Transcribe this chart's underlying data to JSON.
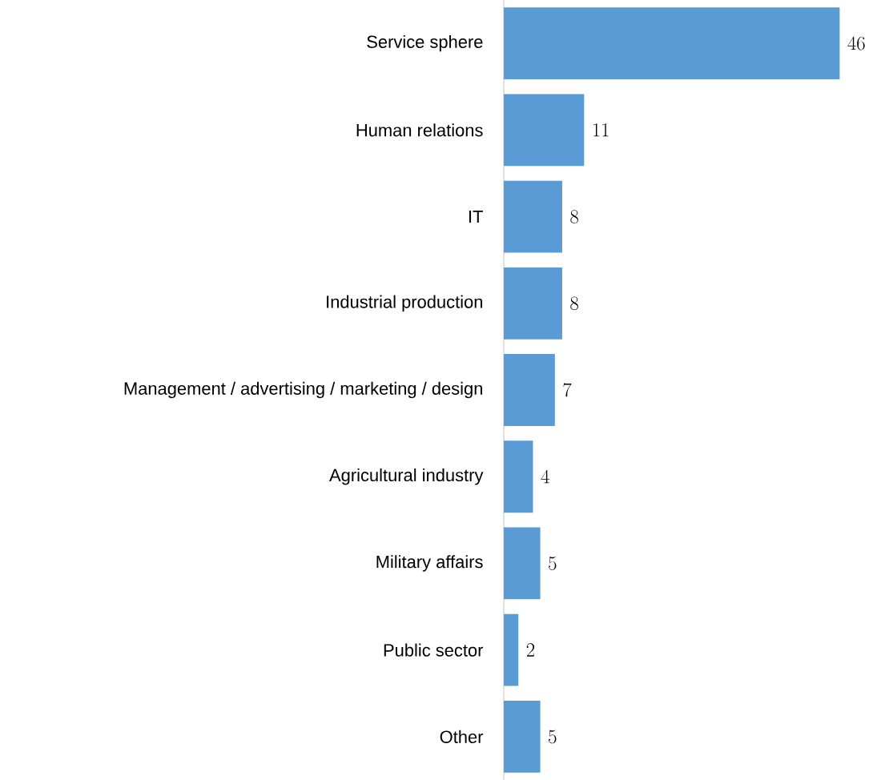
{
  "chart_data": {
    "type": "bar",
    "orientation": "horizontal",
    "categories": [
      "Service sphere",
      "Human relations",
      "IT",
      "Industrial production",
      "Management / advertising / marketing / design",
      "Agricultural industry",
      "Military affairs",
      "Public sector",
      "Other"
    ],
    "values": [
      46,
      11,
      8,
      8,
      7,
      4,
      5,
      2,
      5
    ],
    "color": "#5b9bd5",
    "data_labels": true
  }
}
